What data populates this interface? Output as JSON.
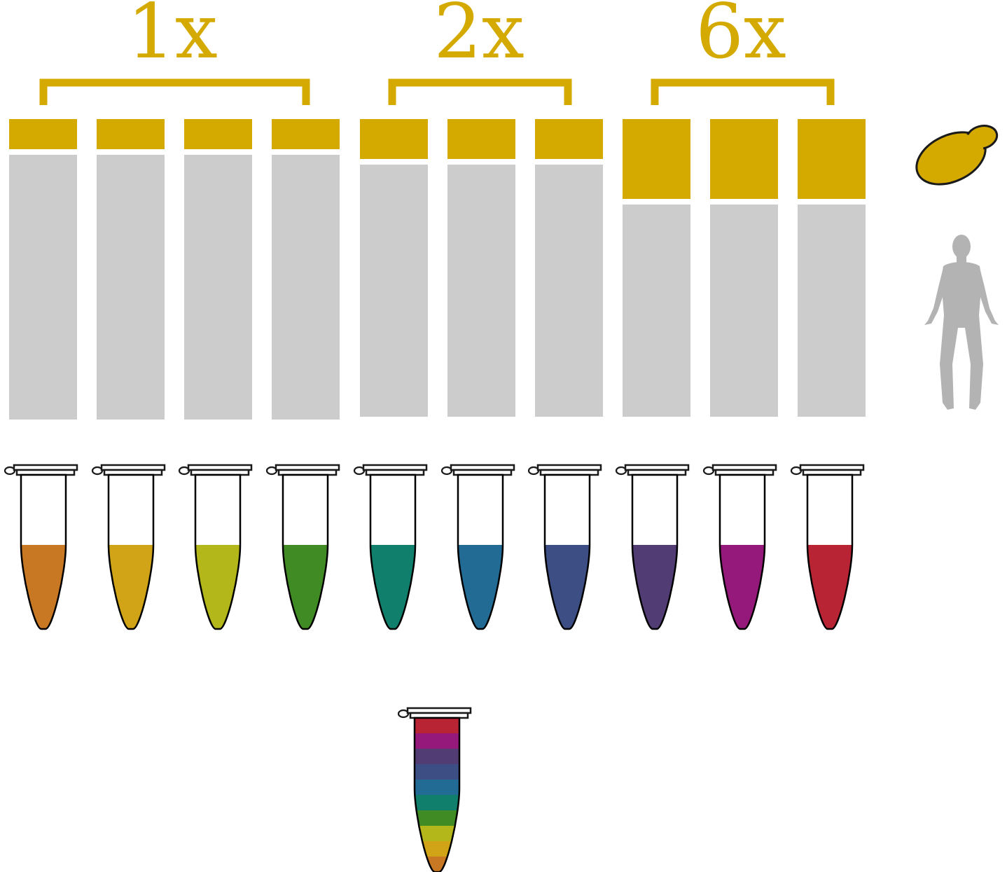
{
  "groups": [
    {
      "label": "1x",
      "lanes": 4,
      "color": "#d4aa00"
    },
    {
      "label": "2x",
      "lanes": 3,
      "color": "#d4aa00"
    },
    {
      "label": "6x",
      "lanes": 3,
      "color": "#d4aa00"
    }
  ],
  "colors": {
    "accent": "#d4aa00",
    "bar_gray": "#cccccc",
    "silhouette_gray": "#b3b3b3"
  },
  "tubes": [
    {
      "color": "#c87822"
    },
    {
      "color": "#d0a416"
    },
    {
      "color": "#b4b71a"
    },
    {
      "color": "#418b25"
    },
    {
      "color": "#107f6c"
    },
    {
      "color": "#216b94"
    },
    {
      "color": "#3c4e84"
    },
    {
      "color": "#523c74"
    },
    {
      "color": "#94197a"
    },
    {
      "color": "#b82433"
    }
  ],
  "pooled_tube": {
    "layers_top_to_bottom": [
      "#b82433",
      "#94197a",
      "#523c74",
      "#3c4e84",
      "#216b94",
      "#107f6c",
      "#418b25",
      "#b4b71a",
      "#d0a416",
      "#c87822"
    ]
  },
  "icons": [
    "yeast-cell-icon",
    "human-silhouette-icon"
  ]
}
